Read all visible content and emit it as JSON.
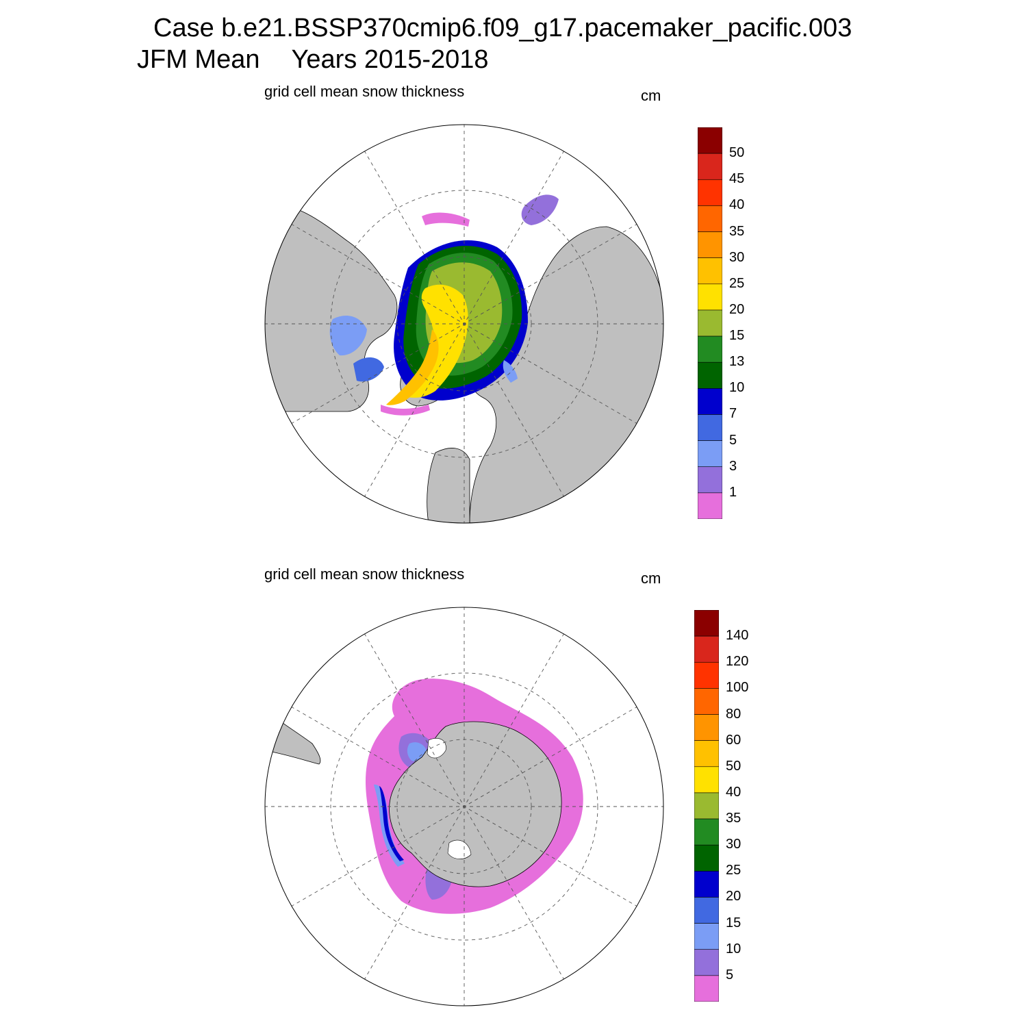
{
  "header": {
    "case_title": "Case b.e21.BSSP370cmip6.f09_g17.pacemaker_pacific.003",
    "season": "JFM Mean",
    "years": "Years 2015-2018"
  },
  "panels": [
    {
      "id": "north",
      "subtitle": "grid cell mean snow thickness",
      "units": "cm",
      "colorbar_labels": [
        "50",
        "45",
        "40",
        "35",
        "30",
        "25",
        "20",
        "15",
        "13",
        "10",
        "7",
        "5",
        "3",
        "1"
      ]
    },
    {
      "id": "south",
      "subtitle": "grid cell mean snow thickness",
      "units": "cm",
      "colorbar_labels": [
        "140",
        "120",
        "100",
        "80",
        "60",
        "50",
        "40",
        "35",
        "30",
        "25",
        "20",
        "15",
        "10",
        "5"
      ]
    }
  ],
  "colorbar_colors": [
    "#8b0000",
    "#d9261c",
    "#ff3300",
    "#ff6600",
    "#ff9400",
    "#ffc100",
    "#ffe100",
    "#9aba30",
    "#228b22",
    "#006400",
    "#0000cd",
    "#4169e1",
    "#7b9df5",
    "#9370db",
    "#e66fdc"
  ],
  "colors": {
    "land": "#bfbfbf",
    "ocean": "#ffffff",
    "grid": "#555555"
  }
}
